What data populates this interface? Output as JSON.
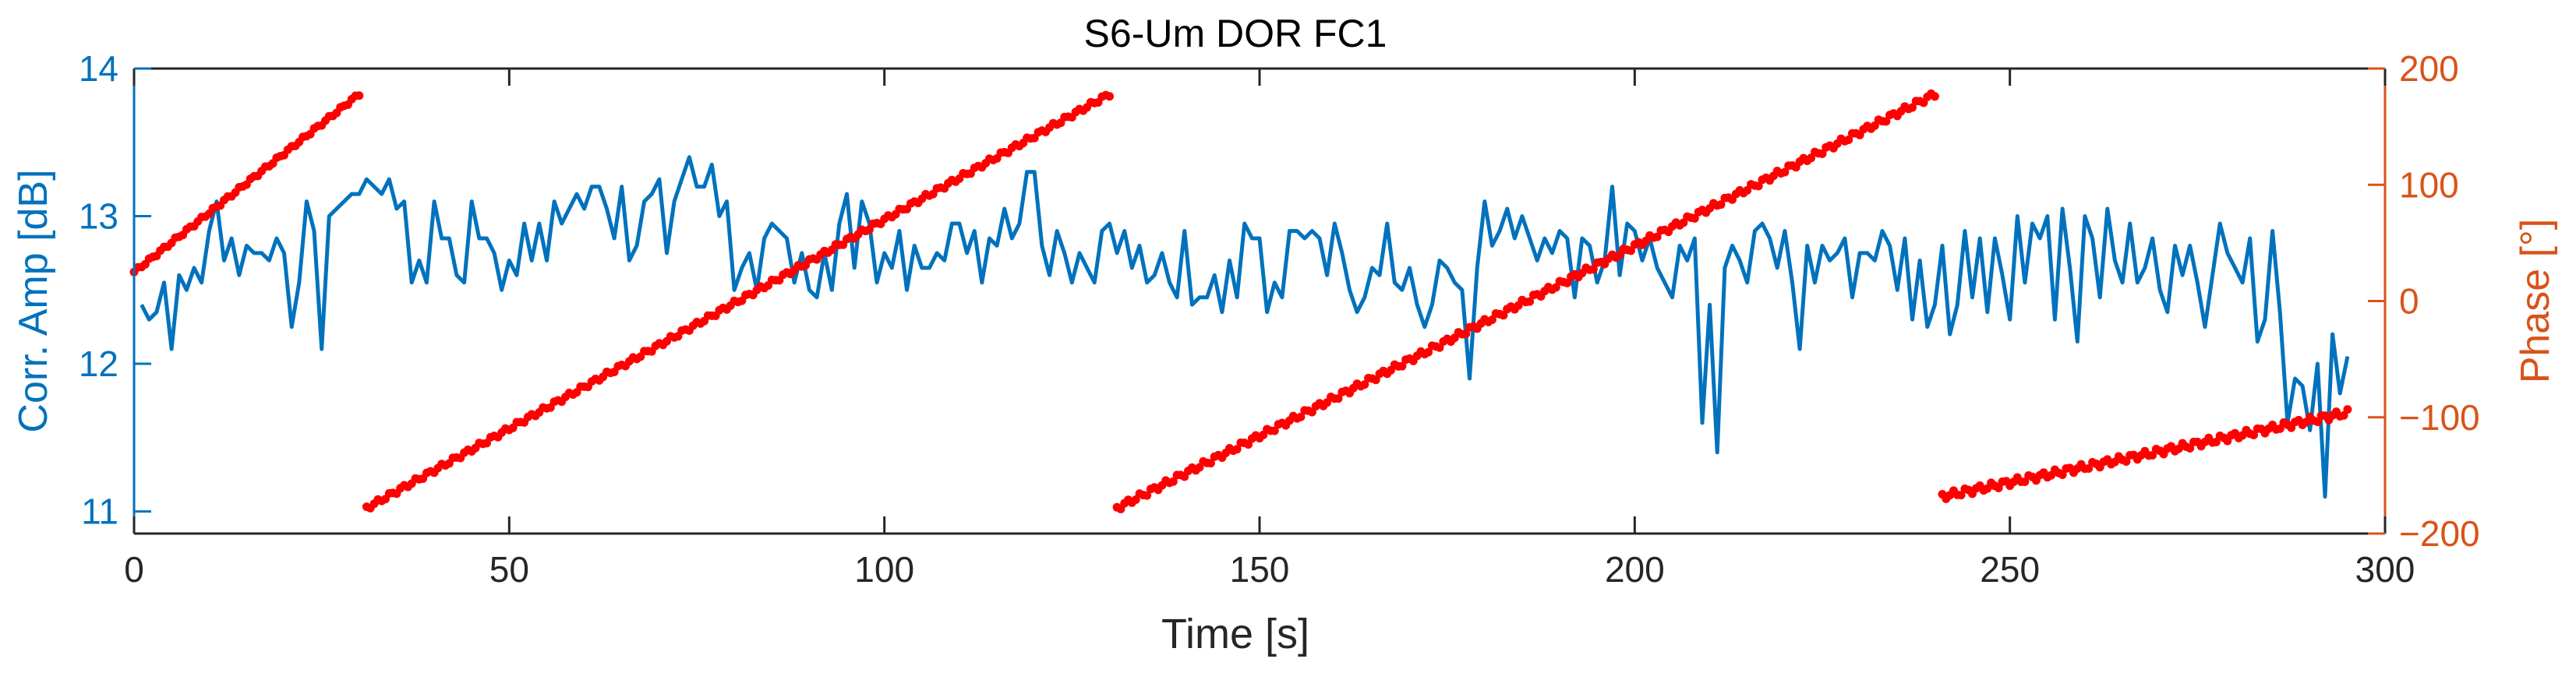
{
  "chart_data": {
    "type": "line",
    "title": "S6-Um DOR FC1",
    "xlabel": "Time [s]",
    "xlim": [
      0,
      300
    ],
    "xticks": [
      0,
      50,
      100,
      150,
      200,
      250,
      300
    ],
    "y_left": {
      "label": "Corr. Amp [dB]",
      "lim": [
        10.85,
        14
      ],
      "ticks": [
        11,
        12,
        13,
        14
      ],
      "color": "#0072BD"
    },
    "y_right": {
      "label": "Phase [°]",
      "lim": [
        -200,
        200
      ],
      "ticks": [
        -200,
        -100,
        0,
        100,
        200
      ],
      "tick_labels": [
        "−200",
        "−100",
        "0",
        "100",
        "200"
      ],
      "color": "#D95319"
    },
    "series": [
      {
        "name": "Corr. Amp",
        "axis": "left",
        "style": "line",
        "color": "#0072BD",
        "points": [
          [
            1,
            12.4
          ],
          [
            2,
            12.3
          ],
          [
            3,
            12.35
          ],
          [
            4,
            12.55
          ],
          [
            5,
            12.1
          ],
          [
            6,
            12.6
          ],
          [
            7,
            12.5
          ],
          [
            8,
            12.65
          ],
          [
            9,
            12.55
          ],
          [
            10,
            12.9
          ],
          [
            11,
            13.1
          ],
          [
            12,
            12.7
          ],
          [
            13,
            12.85
          ],
          [
            14,
            12.6
          ],
          [
            15,
            12.8
          ],
          [
            16,
            12.75
          ],
          [
            17,
            12.75
          ],
          [
            18,
            12.7
          ],
          [
            19,
            12.85
          ],
          [
            20,
            12.75
          ],
          [
            21,
            12.25
          ],
          [
            22,
            12.55
          ],
          [
            23,
            13.1
          ],
          [
            24,
            12.9
          ],
          [
            25,
            12.1
          ],
          [
            26,
            13.0
          ],
          [
            27,
            13.05
          ],
          [
            28,
            13.1
          ],
          [
            29,
            13.15
          ],
          [
            30,
            13.15
          ],
          [
            31,
            13.25
          ],
          [
            32,
            13.2
          ],
          [
            33,
            13.15
          ],
          [
            34,
            13.25
          ],
          [
            35,
            13.05
          ],
          [
            36,
            13.1
          ],
          [
            37,
            12.55
          ],
          [
            38,
            12.7
          ],
          [
            39,
            12.55
          ],
          [
            40,
            13.1
          ],
          [
            41,
            12.85
          ],
          [
            42,
            12.85
          ],
          [
            43,
            12.6
          ],
          [
            44,
            12.55
          ],
          [
            45,
            13.1
          ],
          [
            46,
            12.85
          ],
          [
            47,
            12.85
          ],
          [
            48,
            12.75
          ],
          [
            49,
            12.5
          ],
          [
            50,
            12.7
          ],
          [
            51,
            12.6
          ],
          [
            52,
            12.95
          ],
          [
            53,
            12.7
          ],
          [
            54,
            12.95
          ],
          [
            55,
            12.7
          ],
          [
            56,
            13.1
          ],
          [
            57,
            12.95
          ],
          [
            58,
            13.05
          ],
          [
            59,
            13.15
          ],
          [
            60,
            13.05
          ],
          [
            61,
            13.2
          ],
          [
            62,
            13.2
          ],
          [
            63,
            13.05
          ],
          [
            64,
            12.85
          ],
          [
            65,
            13.2
          ],
          [
            66,
            12.7
          ],
          [
            67,
            12.8
          ],
          [
            68,
            13.1
          ],
          [
            69,
            13.15
          ],
          [
            70,
            13.25
          ],
          [
            71,
            12.75
          ],
          [
            72,
            13.1
          ],
          [
            73,
            13.25
          ],
          [
            74,
            13.4
          ],
          [
            75,
            13.2
          ],
          [
            76,
            13.2
          ],
          [
            77,
            13.35
          ],
          [
            78,
            13.0
          ],
          [
            79,
            13.1
          ],
          [
            80,
            12.5
          ],
          [
            81,
            12.65
          ],
          [
            82,
            12.75
          ],
          [
            83,
            12.5
          ],
          [
            84,
            12.85
          ],
          [
            85,
            12.95
          ],
          [
            86,
            12.9
          ],
          [
            87,
            12.85
          ],
          [
            88,
            12.55
          ],
          [
            89,
            12.75
          ],
          [
            90,
            12.5
          ],
          [
            91,
            12.45
          ],
          [
            92,
            12.75
          ],
          [
            93,
            12.5
          ],
          [
            94,
            12.95
          ],
          [
            95,
            13.15
          ],
          [
            96,
            12.65
          ],
          [
            97,
            13.1
          ],
          [
            98,
            12.95
          ],
          [
            99,
            12.55
          ],
          [
            100,
            12.75
          ],
          [
            101,
            12.65
          ],
          [
            102,
            12.9
          ],
          [
            103,
            12.5
          ],
          [
            104,
            12.8
          ],
          [
            105,
            12.65
          ],
          [
            106,
            12.65
          ],
          [
            107,
            12.75
          ],
          [
            108,
            12.7
          ],
          [
            109,
            12.95
          ],
          [
            110,
            12.95
          ],
          [
            111,
            12.75
          ],
          [
            112,
            12.9
          ],
          [
            113,
            12.55
          ],
          [
            114,
            12.85
          ],
          [
            115,
            12.8
          ],
          [
            116,
            13.05
          ],
          [
            117,
            12.85
          ],
          [
            118,
            12.95
          ],
          [
            119,
            13.3
          ],
          [
            120,
            13.3
          ],
          [
            121,
            12.8
          ],
          [
            122,
            12.6
          ],
          [
            123,
            12.9
          ],
          [
            124,
            12.75
          ],
          [
            125,
            12.55
          ],
          [
            126,
            12.75
          ],
          [
            127,
            12.65
          ],
          [
            128,
            12.55
          ],
          [
            129,
            12.9
          ],
          [
            130,
            12.95
          ],
          [
            131,
            12.75
          ],
          [
            132,
            12.9
          ],
          [
            133,
            12.65
          ],
          [
            134,
            12.8
          ],
          [
            135,
            12.55
          ],
          [
            136,
            12.6
          ],
          [
            137,
            12.75
          ],
          [
            138,
            12.55
          ],
          [
            139,
            12.45
          ],
          [
            140,
            12.9
          ],
          [
            141,
            12.4
          ],
          [
            142,
            12.45
          ],
          [
            143,
            12.45
          ],
          [
            144,
            12.6
          ],
          [
            145,
            12.35
          ],
          [
            146,
            12.7
          ],
          [
            147,
            12.45
          ],
          [
            148,
            12.95
          ],
          [
            149,
            12.85
          ],
          [
            150,
            12.85
          ],
          [
            151,
            12.35
          ],
          [
            152,
            12.55
          ],
          [
            153,
            12.45
          ],
          [
            154,
            12.9
          ],
          [
            155,
            12.9
          ],
          [
            156,
            12.85
          ],
          [
            157,
            12.9
          ],
          [
            158,
            12.85
          ],
          [
            159,
            12.6
          ],
          [
            160,
            12.95
          ],
          [
            161,
            12.75
          ],
          [
            162,
            12.5
          ],
          [
            163,
            12.35
          ],
          [
            164,
            12.45
          ],
          [
            165,
            12.65
          ],
          [
            166,
            12.6
          ],
          [
            167,
            12.95
          ],
          [
            168,
            12.55
          ],
          [
            169,
            12.5
          ],
          [
            170,
            12.65
          ],
          [
            171,
            12.4
          ],
          [
            172,
            12.25
          ],
          [
            173,
            12.4
          ],
          [
            174,
            12.7
          ],
          [
            175,
            12.65
          ],
          [
            176,
            12.55
          ],
          [
            177,
            12.5
          ],
          [
            178,
            11.9
          ],
          [
            179,
            12.65
          ],
          [
            180,
            13.1
          ],
          [
            181,
            12.8
          ],
          [
            182,
            12.9
          ],
          [
            183,
            13.05
          ],
          [
            184,
            12.85
          ],
          [
            185,
            13.0
          ],
          [
            186,
            12.85
          ],
          [
            187,
            12.7
          ],
          [
            188,
            12.85
          ],
          [
            189,
            12.75
          ],
          [
            190,
            12.9
          ],
          [
            191,
            12.85
          ],
          [
            192,
            12.45
          ],
          [
            193,
            12.85
          ],
          [
            194,
            12.8
          ],
          [
            195,
            12.55
          ],
          [
            196,
            12.7
          ],
          [
            197,
            13.2
          ],
          [
            198,
            12.6
          ],
          [
            199,
            12.95
          ],
          [
            200,
            12.9
          ],
          [
            201,
            12.7
          ],
          [
            202,
            12.85
          ],
          [
            203,
            12.65
          ],
          [
            204,
            12.55
          ],
          [
            205,
            12.45
          ],
          [
            206,
            12.8
          ],
          [
            207,
            12.7
          ],
          [
            208,
            12.85
          ],
          [
            209,
            11.6
          ],
          [
            210,
            12.4
          ],
          [
            211,
            11.4
          ],
          [
            212,
            12.65
          ],
          [
            213,
            12.8
          ],
          [
            214,
            12.7
          ],
          [
            215,
            12.55
          ],
          [
            216,
            12.9
          ],
          [
            217,
            12.95
          ],
          [
            218,
            12.85
          ],
          [
            219,
            12.65
          ],
          [
            220,
            12.9
          ],
          [
            221,
            12.55
          ],
          [
            222,
            12.1
          ],
          [
            223,
            12.8
          ],
          [
            224,
            12.55
          ],
          [
            225,
            12.8
          ],
          [
            226,
            12.7
          ],
          [
            227,
            12.75
          ],
          [
            228,
            12.85
          ],
          [
            229,
            12.45
          ],
          [
            230,
            12.75
          ],
          [
            231,
            12.75
          ],
          [
            232,
            12.7
          ],
          [
            233,
            12.9
          ],
          [
            234,
            12.8
          ],
          [
            235,
            12.5
          ],
          [
            236,
            12.85
          ],
          [
            237,
            12.3
          ],
          [
            238,
            12.7
          ],
          [
            239,
            12.25
          ],
          [
            240,
            12.4
          ],
          [
            241,
            12.8
          ],
          [
            242,
            12.2
          ],
          [
            243,
            12.4
          ],
          [
            244,
            12.9
          ],
          [
            245,
            12.45
          ],
          [
            246,
            12.85
          ],
          [
            247,
            12.35
          ],
          [
            248,
            12.85
          ],
          [
            249,
            12.6
          ],
          [
            250,
            12.3
          ],
          [
            251,
            13.0
          ],
          [
            252,
            12.55
          ],
          [
            253,
            12.95
          ],
          [
            254,
            12.85
          ],
          [
            255,
            13.0
          ],
          [
            256,
            12.3
          ],
          [
            257,
            13.05
          ],
          [
            258,
            12.65
          ],
          [
            259,
            12.15
          ],
          [
            260,
            13.0
          ],
          [
            261,
            12.85
          ],
          [
            262,
            12.45
          ],
          [
            263,
            13.05
          ],
          [
            264,
            12.7
          ],
          [
            265,
            12.55
          ],
          [
            266,
            12.95
          ],
          [
            267,
            12.55
          ],
          [
            268,
            12.65
          ],
          [
            269,
            12.85
          ],
          [
            270,
            12.5
          ],
          [
            271,
            12.35
          ],
          [
            272,
            12.8
          ],
          [
            273,
            12.6
          ],
          [
            274,
            12.8
          ],
          [
            275,
            12.55
          ],
          [
            276,
            12.25
          ],
          [
            277,
            12.6
          ],
          [
            278,
            12.95
          ],
          [
            279,
            12.75
          ],
          [
            280,
            12.65
          ],
          [
            281,
            12.55
          ],
          [
            282,
            12.85
          ],
          [
            283,
            12.15
          ],
          [
            284,
            12.3
          ],
          [
            285,
            12.9
          ],
          [
            286,
            12.35
          ],
          [
            287,
            11.6
          ],
          [
            288,
            11.9
          ],
          [
            289,
            11.85
          ],
          [
            290,
            11.55
          ],
          [
            291,
            12.0
          ],
          [
            292,
            11.1
          ],
          [
            293,
            12.2
          ],
          [
            294,
            11.8
          ],
          [
            295,
            12.05
          ]
        ]
      },
      {
        "name": "Phase",
        "axis": "right",
        "style": "dots",
        "color": "#FF0000",
        "segments": [
          {
            "t_start": 0,
            "t_end": 30,
            "phase_start": 25,
            "phase_end": 178,
            "jitter": 1.5
          },
          {
            "t_start": 31,
            "t_end": 130,
            "phase_start": -178,
            "phase_end": 178,
            "jitter": 2
          },
          {
            "t_start": 131,
            "t_end": 240,
            "phase_start": -178,
            "phase_end": 178,
            "jitter": 2.5
          },
          {
            "t_start": 241,
            "t_end": 295,
            "phase_start": -168,
            "phase_end": -96,
            "jitter": 3
          }
        ]
      }
    ]
  }
}
